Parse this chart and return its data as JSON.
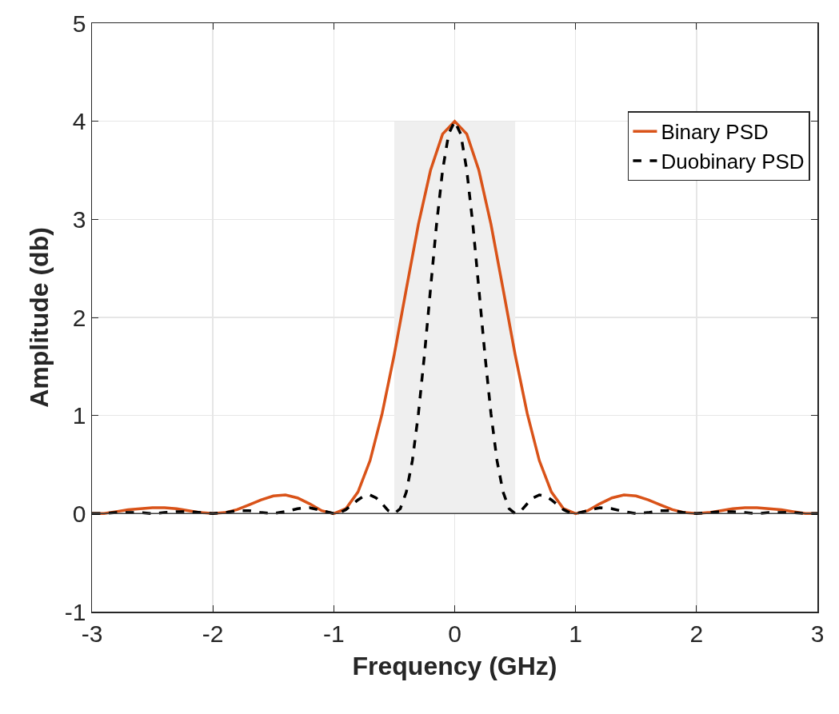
{
  "chart_data": {
    "type": "line",
    "xlabel": "Frequency (GHz)",
    "ylabel": "Amplitude (db)",
    "xlim": [
      -3,
      3
    ],
    "xticks": [
      -3,
      -2,
      -1,
      0,
      1,
      2,
      3
    ],
    "ylim": [
      -1,
      5
    ],
    "yticks": [
      -1,
      0,
      1,
      2,
      3,
      4,
      5
    ],
    "grid": true,
    "legend": "top right",
    "marker": "none",
    "ref_lines": [
      {
        "axis": "y",
        "value": 0,
        "color": "#404040"
      }
    ],
    "series": [
      {
        "type": "area",
        "color": "#efefef",
        "x": [
          -0.5,
          0.5
        ],
        "values": [
          4,
          4
        ]
      },
      {
        "name": "Binary PSD",
        "color": "#d95319",
        "line_style": "solid",
        "x": [
          -3,
          -2.9,
          -2.8,
          -2.7,
          -2.6,
          -2.5,
          -2.4,
          -2.3,
          -2.2,
          -2.1,
          -2,
          -1.9,
          -1.8,
          -1.7,
          -1.6,
          -1.5,
          -1.4,
          -1.3,
          -1.2,
          -1.1,
          -1,
          -0.9,
          -0.8,
          -0.7,
          -0.6,
          -0.5,
          -0.4,
          -0.3,
          -0.2,
          -0.1,
          0,
          0.1,
          0.2,
          0.3,
          0.4,
          0.5,
          0.6,
          0.7,
          0.8,
          0.9,
          1,
          1.1,
          1.2,
          1.3,
          1.4,
          1.5,
          1.6,
          1.7,
          1.8,
          1.9,
          2,
          2.1,
          2.2,
          2.3,
          2.4,
          2.5,
          2.6,
          2.7,
          2.8,
          2.9,
          3
        ],
        "values": [
          0,
          0,
          0.02,
          0.04,
          0.05,
          0.06,
          0.06,
          0.05,
          0.03,
          0.01,
          0,
          0.01,
          0.04,
          0.09,
          0.14,
          0.18,
          0.19,
          0.16,
          0.1,
          0.03,
          0,
          0.05,
          0.22,
          0.54,
          1.02,
          1.62,
          2.29,
          2.95,
          3.5,
          3.87,
          4,
          3.87,
          3.5,
          2.95,
          2.29,
          1.62,
          1.02,
          0.54,
          0.22,
          0.05,
          0,
          0.03,
          0.1,
          0.16,
          0.19,
          0.18,
          0.14,
          0.09,
          0.04,
          0.01,
          0,
          0.01,
          0.03,
          0.05,
          0.06,
          0.06,
          0.05,
          0.04,
          0.02,
          0,
          0
        ]
      },
      {
        "name": "Duobinary PSD",
        "color": "#000000",
        "line_style": "dashed",
        "x": [
          -3,
          -2.9,
          -2.8,
          -2.7,
          -2.6,
          -2.5,
          -2.4,
          -2.3,
          -2.2,
          -2.1,
          -2,
          -1.9,
          -1.8,
          -1.7,
          -1.6,
          -1.5,
          -1.4,
          -1.3,
          -1.2,
          -1.1,
          -1,
          -0.95,
          -0.9,
          -0.85,
          -0.8,
          -0.75,
          -0.7,
          -0.65,
          -0.6,
          -0.55,
          -0.5,
          -0.45,
          -0.4,
          -0.35,
          -0.3,
          -0.25,
          -0.2,
          -0.15,
          -0.1,
          -0.05,
          0,
          0.05,
          0.1,
          0.15,
          0.2,
          0.25,
          0.3,
          0.35,
          0.4,
          0.45,
          0.5,
          0.55,
          0.6,
          0.65,
          0.7,
          0.75,
          0.8,
          0.85,
          0.9,
          0.95,
          1,
          1.1,
          1.2,
          1.3,
          1.4,
          1.5,
          1.6,
          1.7,
          1.8,
          1.9,
          2,
          2.1,
          2.2,
          2.3,
          2.4,
          2.5,
          2.6,
          2.7,
          2.8,
          2.9,
          3
        ],
        "values": [
          0,
          0,
          0.01,
          0.01,
          0.01,
          0,
          0.01,
          0.02,
          0.02,
          0.01,
          0,
          0.01,
          0.03,
          0.03,
          0.01,
          0,
          0.02,
          0.05,
          0.06,
          0.03,
          0,
          0.01,
          0.04,
          0.09,
          0.14,
          0.18,
          0.19,
          0.16,
          0.1,
          0.03,
          0,
          0.05,
          0.22,
          0.54,
          1.02,
          1.62,
          2.29,
          2.95,
          3.5,
          3.87,
          4,
          3.87,
          3.5,
          2.95,
          2.29,
          1.62,
          1.02,
          0.54,
          0.22,
          0.05,
          0,
          0.03,
          0.1,
          0.16,
          0.19,
          0.18,
          0.14,
          0.09,
          0.04,
          0.01,
          0,
          0.03,
          0.06,
          0.05,
          0.02,
          0,
          0.01,
          0.03,
          0.03,
          0.01,
          0,
          0.01,
          0.02,
          0.02,
          0.01,
          0,
          0.01,
          0.01,
          0.01,
          0,
          0
        ]
      }
    ]
  }
}
